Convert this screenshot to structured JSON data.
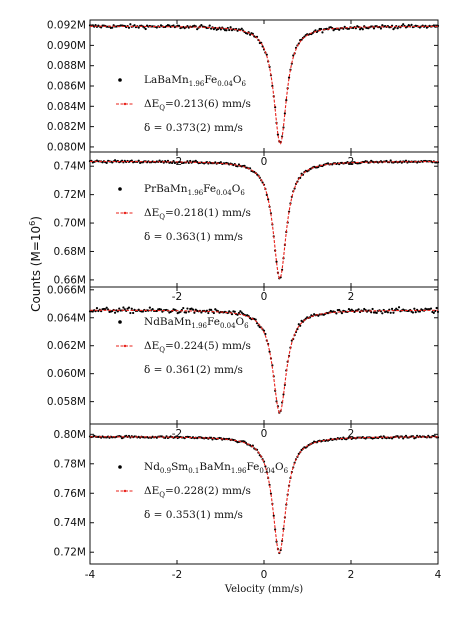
{
  "chart_data": {
    "type": "scatter",
    "xlabel": "Velocity (mm/s)",
    "ylabel_main": "Counts (M=10",
    "ylabel_sup": "6",
    "ylabel_end": ")",
    "xlim": [
      -4,
      4
    ],
    "x_ticks": [
      -4,
      -2,
      0,
      2,
      4
    ],
    "x_tick_labels": [
      "-4",
      "-2",
      "0",
      "2",
      "4"
    ],
    "inner_x_tick_labels": [
      "-2",
      "0",
      "2"
    ],
    "panels": [
      {
        "ylim": [
          0.0795,
          0.0925
        ],
        "y_ticks": [
          0.08,
          0.082,
          0.084,
          0.086,
          0.088,
          0.09,
          0.092
        ],
        "y_tick_labels": [
          "0.080M",
          "0.082M",
          "0.084M",
          "0.086M",
          "0.088M",
          "0.090M",
          "0.092M"
        ],
        "baseline": 0.0919,
        "min": 0.0803,
        "center": 0.373,
        "width": 0.36,
        "noise": 0.00018,
        "legend_series": [
          {
            "parts": [
              "LaBaMn",
              "1.96",
              "Fe",
              "0.04",
              "O",
              "6"
            ]
          },
          {
            "parts": [
              "ΔE",
              "Q",
              "=0.213(6) mm/s"
            ]
          }
        ],
        "delta_text": "δ = 0.373(2) mm/s"
      },
      {
        "ylim": [
          0.655,
          0.75
        ],
        "y_ticks": [
          0.66,
          0.68,
          0.7,
          0.72,
          0.74
        ],
        "y_tick_labels": [
          "0.66M",
          "0.68M",
          "0.70M",
          "0.72M",
          "0.74M"
        ],
        "baseline": 0.7435,
        "min": 0.661,
        "center": 0.363,
        "width": 0.37,
        "noise": 0.0008,
        "legend_series": [
          {
            "parts": [
              "PrBaMn",
              "1.96",
              "Fe",
              "0.04",
              "O",
              "6"
            ]
          },
          {
            "parts": [
              "ΔE",
              "Q",
              "=0.218(1) mm/s"
            ]
          }
        ],
        "delta_text": "δ = 0.363(1) mm/s"
      },
      {
        "ylim": [
          0.0564,
          0.0662
        ],
        "y_ticks": [
          0.058,
          0.06,
          0.062,
          0.064,
          0.066
        ],
        "y_tick_labels": [
          "0.058M",
          "0.060M",
          "0.062M",
          "0.064M",
          "0.066M"
        ],
        "baseline": 0.06455,
        "min": 0.0572,
        "center": 0.361,
        "width": 0.38,
        "noise": 0.00018,
        "legend_series": [
          {
            "parts": [
              "NdBaMn",
              "1.96",
              "Fe",
              "0.04",
              "O",
              "6"
            ]
          },
          {
            "parts": [
              "ΔE",
              "Q",
              "=0.224(5) mm/s"
            ]
          }
        ],
        "delta_text": "δ = 0.361(2) mm/s"
      },
      {
        "ylim": [
          0.712,
          0.807
        ],
        "y_ticks": [
          0.72,
          0.74,
          0.76,
          0.78,
          0.8
        ],
        "y_tick_labels": [
          "0.72M",
          "0.74M",
          "0.76M",
          "0.78M",
          "0.80M"
        ],
        "baseline": 0.7985,
        "min": 0.7195,
        "center": 0.353,
        "width": 0.38,
        "noise": 0.0007,
        "legend_series": [
          {
            "parts": [
              "Nd",
              "0.9",
              "Sm",
              "0.1",
              "BaMn",
              "1.96",
              "Fe",
              "0.04",
              "O",
              "6"
            ]
          },
          {
            "parts": [
              "ΔE",
              "Q",
              "=0.228(2) mm/s"
            ]
          }
        ],
        "delta_text": "δ = 0.353(1) mm/s"
      }
    ],
    "colors": {
      "points": "#000000",
      "fit": "#e8201a",
      "axes": "#111111"
    }
  }
}
